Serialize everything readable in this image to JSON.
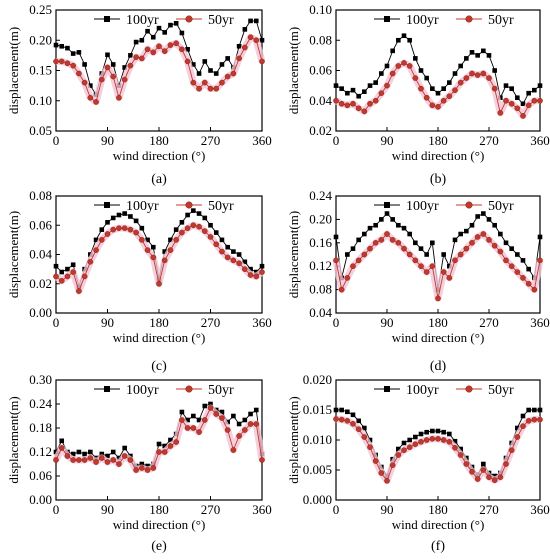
{
  "chart_data": [
    {
      "type": "line",
      "panel_label": "(a)",
      "xlabel": "wind direction (°)",
      "ylabel": "displacement(m)",
      "xlim": [
        0,
        360
      ],
      "ylim": [
        0.05,
        0.25
      ],
      "xticks": [
        "0",
        "90",
        "180",
        "270",
        "360"
      ],
      "yticks": [
        "0.05",
        "0.10",
        "0.15",
        "0.20",
        "0.25"
      ],
      "legend_position": "top",
      "x": [
        0,
        10,
        20,
        30,
        40,
        50,
        60,
        70,
        80,
        90,
        100,
        110,
        120,
        130,
        140,
        150,
        160,
        170,
        180,
        190,
        200,
        210,
        220,
        230,
        240,
        250,
        260,
        270,
        280,
        290,
        300,
        310,
        320,
        330,
        340,
        350,
        360
      ],
      "series": [
        {
          "name": "100yr",
          "color": "#000000",
          "marker": "square",
          "values": [
            0.192,
            0.19,
            0.187,
            0.178,
            0.18,
            0.16,
            0.125,
            0.11,
            0.145,
            0.176,
            0.16,
            0.125,
            0.155,
            0.175,
            0.197,
            0.2,
            0.215,
            0.205,
            0.22,
            0.213,
            0.225,
            0.228,
            0.212,
            0.185,
            0.16,
            0.145,
            0.165,
            0.15,
            0.145,
            0.16,
            0.17,
            0.155,
            0.19,
            0.218,
            0.232,
            0.232,
            0.2
          ]
        },
        {
          "name": "50yr",
          "color": "#c0392b",
          "marker": "circle",
          "values": [
            0.165,
            0.165,
            0.162,
            0.158,
            0.145,
            0.13,
            0.105,
            0.098,
            0.135,
            0.155,
            0.14,
            0.105,
            0.135,
            0.158,
            0.172,
            0.17,
            0.185,
            0.18,
            0.19,
            0.182,
            0.192,
            0.195,
            0.185,
            0.165,
            0.13,
            0.12,
            0.13,
            0.12,
            0.12,
            0.13,
            0.14,
            0.145,
            0.17,
            0.188,
            0.205,
            0.2,
            0.165
          ]
        }
      ]
    },
    {
      "type": "line",
      "panel_label": "(b)",
      "xlabel": "wind direction (°)",
      "ylabel": "displacement(m)",
      "xlim": [
        0,
        360
      ],
      "ylim": [
        0.02,
        0.1
      ],
      "xticks": [
        "0",
        "90",
        "180",
        "270",
        "360"
      ],
      "yticks": [
        "0.02",
        "0.04",
        "0.06",
        "0.08",
        "0.10"
      ],
      "legend_position": "top",
      "x": [
        0,
        10,
        20,
        30,
        40,
        50,
        60,
        70,
        80,
        90,
        100,
        110,
        120,
        130,
        140,
        150,
        160,
        170,
        180,
        190,
        200,
        210,
        220,
        230,
        240,
        250,
        260,
        270,
        280,
        290,
        300,
        310,
        320,
        330,
        340,
        350,
        360
      ],
      "series": [
        {
          "name": "100yr",
          "color": "#000000",
          "marker": "square",
          "values": [
            0.05,
            0.048,
            0.045,
            0.047,
            0.043,
            0.046,
            0.05,
            0.052,
            0.058,
            0.063,
            0.073,
            0.08,
            0.083,
            0.08,
            0.068,
            0.06,
            0.055,
            0.048,
            0.045,
            0.048,
            0.052,
            0.058,
            0.063,
            0.068,
            0.072,
            0.07,
            0.073,
            0.07,
            0.06,
            0.042,
            0.05,
            0.048,
            0.042,
            0.038,
            0.045,
            0.047,
            0.05
          ]
        },
        {
          "name": "50yr",
          "color": "#c0392b",
          "marker": "circle",
          "values": [
            0.04,
            0.038,
            0.037,
            0.038,
            0.035,
            0.033,
            0.038,
            0.04,
            0.045,
            0.05,
            0.058,
            0.063,
            0.065,
            0.063,
            0.055,
            0.048,
            0.042,
            0.037,
            0.036,
            0.04,
            0.043,
            0.047,
            0.052,
            0.055,
            0.058,
            0.057,
            0.058,
            0.055,
            0.048,
            0.032,
            0.04,
            0.038,
            0.035,
            0.03,
            0.037,
            0.04,
            0.04
          ]
        }
      ]
    },
    {
      "type": "line",
      "panel_label": "(c)",
      "xlabel": "wind direction (°)",
      "ylabel": "displacement(m)",
      "xlim": [
        0,
        360
      ],
      "ylim": [
        0.0,
        0.08
      ],
      "xticks": [
        "0",
        "90",
        "180",
        "270",
        "360"
      ],
      "yticks": [
        "0.00",
        "0.02",
        "0.04",
        "0.06",
        "0.08"
      ],
      "legend_position": "top",
      "x": [
        0,
        10,
        20,
        30,
        40,
        50,
        60,
        70,
        80,
        90,
        100,
        110,
        120,
        130,
        140,
        150,
        160,
        170,
        180,
        190,
        200,
        210,
        220,
        230,
        240,
        250,
        260,
        270,
        280,
        290,
        300,
        310,
        320,
        330,
        340,
        350,
        360
      ],
      "series": [
        {
          "name": "100yr",
          "color": "#000000",
          "marker": "square",
          "values": [
            0.032,
            0.028,
            0.03,
            0.033,
            0.018,
            0.03,
            0.04,
            0.05,
            0.057,
            0.062,
            0.065,
            0.067,
            0.068,
            0.066,
            0.063,
            0.058,
            0.05,
            0.045,
            0.023,
            0.042,
            0.05,
            0.057,
            0.062,
            0.067,
            0.07,
            0.068,
            0.065,
            0.06,
            0.055,
            0.05,
            0.045,
            0.042,
            0.04,
            0.035,
            0.03,
            0.028,
            0.032
          ]
        },
        {
          "name": "50yr",
          "color": "#c0392b",
          "marker": "circle",
          "values": [
            0.025,
            0.022,
            0.025,
            0.028,
            0.015,
            0.025,
            0.035,
            0.043,
            0.05,
            0.054,
            0.057,
            0.058,
            0.058,
            0.057,
            0.055,
            0.05,
            0.043,
            0.038,
            0.02,
            0.036,
            0.043,
            0.05,
            0.055,
            0.058,
            0.06,
            0.059,
            0.056,
            0.052,
            0.047,
            0.042,
            0.038,
            0.036,
            0.034,
            0.03,
            0.026,
            0.025,
            0.028
          ]
        }
      ]
    },
    {
      "type": "line",
      "panel_label": "(d)",
      "xlabel": "wind direction (°)",
      "ylabel": "displacement(m)",
      "xlim": [
        0,
        360
      ],
      "ylim": [
        0.04,
        0.24
      ],
      "xticks": [
        "0",
        "90",
        "180",
        "270",
        "360"
      ],
      "yticks": [
        "0.04",
        "0.08",
        "0.12",
        "0.16",
        "0.20",
        "0.24"
      ],
      "legend_position": "top",
      "x": [
        0,
        10,
        20,
        30,
        40,
        50,
        60,
        70,
        80,
        90,
        100,
        110,
        120,
        130,
        140,
        150,
        160,
        170,
        180,
        190,
        200,
        210,
        220,
        230,
        240,
        250,
        260,
        270,
        280,
        290,
        300,
        310,
        320,
        330,
        340,
        350,
        360
      ],
      "series": [
        {
          "name": "100yr",
          "color": "#000000",
          "marker": "square",
          "values": [
            0.17,
            0.1,
            0.14,
            0.15,
            0.165,
            0.175,
            0.185,
            0.19,
            0.2,
            0.21,
            0.2,
            0.19,
            0.185,
            0.175,
            0.16,
            0.15,
            0.14,
            0.16,
            0.08,
            0.14,
            0.12,
            0.165,
            0.175,
            0.18,
            0.19,
            0.205,
            0.21,
            0.2,
            0.19,
            0.175,
            0.16,
            0.15,
            0.14,
            0.13,
            0.115,
            0.1,
            0.17
          ]
        },
        {
          "name": "50yr",
          "color": "#c0392b",
          "marker": "circle",
          "values": [
            0.13,
            0.08,
            0.1,
            0.12,
            0.13,
            0.14,
            0.15,
            0.16,
            0.165,
            0.175,
            0.165,
            0.16,
            0.15,
            0.14,
            0.13,
            0.12,
            0.11,
            0.12,
            0.065,
            0.11,
            0.1,
            0.13,
            0.14,
            0.15,
            0.16,
            0.17,
            0.175,
            0.165,
            0.155,
            0.145,
            0.13,
            0.12,
            0.11,
            0.1,
            0.09,
            0.08,
            0.13
          ]
        }
      ]
    },
    {
      "type": "line",
      "panel_label": "(e)",
      "xlabel": "wind direction (°)",
      "ylabel": "displacement(m)",
      "xlim": [
        0,
        360
      ],
      "ylim": [
        0.0,
        0.3
      ],
      "xticks": [
        "0",
        "90",
        "180",
        "270",
        "360"
      ],
      "yticks": [
        "0.00",
        "0.06",
        "0.12",
        "0.18",
        "0.24",
        "0.30"
      ],
      "legend_position": "top",
      "x": [
        0,
        10,
        20,
        30,
        40,
        50,
        60,
        70,
        80,
        90,
        100,
        110,
        120,
        130,
        140,
        150,
        160,
        170,
        180,
        190,
        200,
        210,
        220,
        230,
        240,
        250,
        260,
        270,
        280,
        290,
        300,
        310,
        320,
        330,
        340,
        350,
        360
      ],
      "series": [
        {
          "name": "100yr",
          "color": "#000000",
          "marker": "square",
          "values": [
            0.12,
            0.148,
            0.12,
            0.115,
            0.12,
            0.115,
            0.12,
            0.105,
            0.115,
            0.11,
            0.12,
            0.105,
            0.13,
            0.11,
            0.085,
            0.09,
            0.085,
            0.09,
            0.14,
            0.135,
            0.15,
            0.165,
            0.22,
            0.2,
            0.21,
            0.2,
            0.235,
            0.24,
            0.225,
            0.22,
            0.195,
            0.21,
            0.19,
            0.2,
            0.215,
            0.225,
            0.115
          ]
        },
        {
          "name": "50yr",
          "color": "#c0392b",
          "marker": "circle",
          "values": [
            0.1,
            0.13,
            0.11,
            0.1,
            0.1,
            0.1,
            0.105,
            0.095,
            0.105,
            0.095,
            0.1,
            0.09,
            0.11,
            0.1,
            0.075,
            0.08,
            0.075,
            0.08,
            0.12,
            0.12,
            0.135,
            0.145,
            0.2,
            0.18,
            0.18,
            0.17,
            0.2,
            0.23,
            0.215,
            0.205,
            0.175,
            0.125,
            0.16,
            0.175,
            0.19,
            0.19,
            0.1
          ]
        }
      ]
    },
    {
      "type": "line",
      "panel_label": "(f)",
      "xlabel": "wind direction (°)",
      "ylabel": "displacement(m)",
      "xlim": [
        0,
        360
      ],
      "ylim": [
        0.0,
        0.02
      ],
      "xticks": [
        "0",
        "90",
        "180",
        "270",
        "360"
      ],
      "yticks": [
        "0.000",
        "0.005",
        "0.010",
        "0.015",
        "0.020"
      ],
      "legend_position": "top",
      "x": [
        0,
        10,
        20,
        30,
        40,
        50,
        60,
        70,
        80,
        90,
        100,
        110,
        120,
        130,
        140,
        150,
        160,
        170,
        180,
        190,
        200,
        210,
        220,
        230,
        240,
        250,
        260,
        270,
        280,
        290,
        300,
        310,
        320,
        330,
        340,
        350,
        360
      ],
      "series": [
        {
          "name": "100yr",
          "color": "#000000",
          "marker": "square",
          "values": [
            0.015,
            0.015,
            0.0147,
            0.0142,
            0.0132,
            0.012,
            0.01,
            0.0075,
            0.0055,
            0.004,
            0.0068,
            0.0085,
            0.0095,
            0.01,
            0.0105,
            0.011,
            0.0113,
            0.0115,
            0.0115,
            0.0113,
            0.011,
            0.0098,
            0.0085,
            0.007,
            0.0055,
            0.0042,
            0.006,
            0.0045,
            0.004,
            0.0045,
            0.007,
            0.0095,
            0.012,
            0.014,
            0.015,
            0.015,
            0.015
          ]
        },
        {
          "name": "50yr",
          "color": "#c0392b",
          "marker": "circle",
          "values": [
            0.0135,
            0.0134,
            0.0132,
            0.0127,
            0.0118,
            0.0105,
            0.0088,
            0.0065,
            0.0045,
            0.0032,
            0.0058,
            0.0075,
            0.0083,
            0.0088,
            0.0093,
            0.0097,
            0.01,
            0.0102,
            0.0102,
            0.01,
            0.0097,
            0.0087,
            0.0075,
            0.006,
            0.0047,
            0.0035,
            0.005,
            0.0038,
            0.0033,
            0.0038,
            0.006,
            0.0083,
            0.0105,
            0.0123,
            0.0132,
            0.0134,
            0.0134
          ]
        }
      ]
    }
  ]
}
